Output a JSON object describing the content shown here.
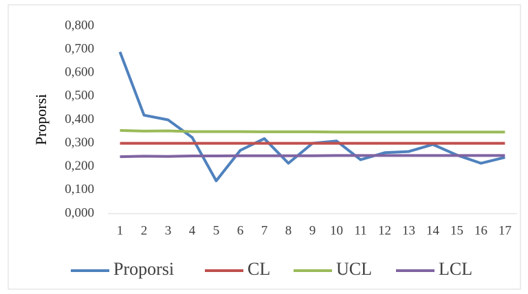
{
  "chart_data": {
    "type": "line",
    "y_label": "Proporsi",
    "categories": [
      "1",
      "2",
      "3",
      "4",
      "5",
      "6",
      "7",
      "8",
      "9",
      "10",
      "11",
      "12",
      "13",
      "14",
      "15",
      "16",
      "17"
    ],
    "series": [
      {
        "name": "Proporsi",
        "color": "#4f81bd",
        "values": [
          0.69,
          0.42,
          0.4,
          0.325,
          0.14,
          0.27,
          0.32,
          0.215,
          0.3,
          0.31,
          0.23,
          0.26,
          0.265,
          0.295,
          0.25,
          0.215,
          0.24
        ]
      },
      {
        "name": "CL",
        "color": "#c0504d",
        "values": [
          0.3,
          0.3,
          0.3,
          0.3,
          0.3,
          0.3,
          0.3,
          0.3,
          0.3,
          0.3,
          0.3,
          0.3,
          0.3,
          0.3,
          0.3,
          0.3,
          0.3
        ]
      },
      {
        "name": "UCL",
        "color": "#9bbb59",
        "values": [
          0.355,
          0.352,
          0.353,
          0.35,
          0.35,
          0.35,
          0.349,
          0.349,
          0.349,
          0.348,
          0.348,
          0.348,
          0.348,
          0.348,
          0.348,
          0.348,
          0.348
        ]
      },
      {
        "name": "LCL",
        "color": "#8064a2",
        "values": [
          0.243,
          0.245,
          0.244,
          0.246,
          0.246,
          0.247,
          0.247,
          0.247,
          0.247,
          0.248,
          0.248,
          0.248,
          0.248,
          0.248,
          0.248,
          0.248,
          0.248
        ]
      }
    ],
    "ylim": [
      0,
      0.8
    ],
    "yticks": [
      {
        "value": 0,
        "label": "0,000"
      },
      {
        "value": 0.1,
        "label": "0,100"
      },
      {
        "value": 0.2,
        "label": "0,200"
      },
      {
        "value": 0.3,
        "label": "0,300"
      },
      {
        "value": 0.4,
        "label": "0,400"
      },
      {
        "value": 0.5,
        "label": "0,500"
      },
      {
        "value": 0.6,
        "label": "0,600"
      },
      {
        "value": 0.7,
        "label": "0,700"
      },
      {
        "value": 0.8,
        "label": "0,800"
      }
    ],
    "legend": "bottom"
  }
}
